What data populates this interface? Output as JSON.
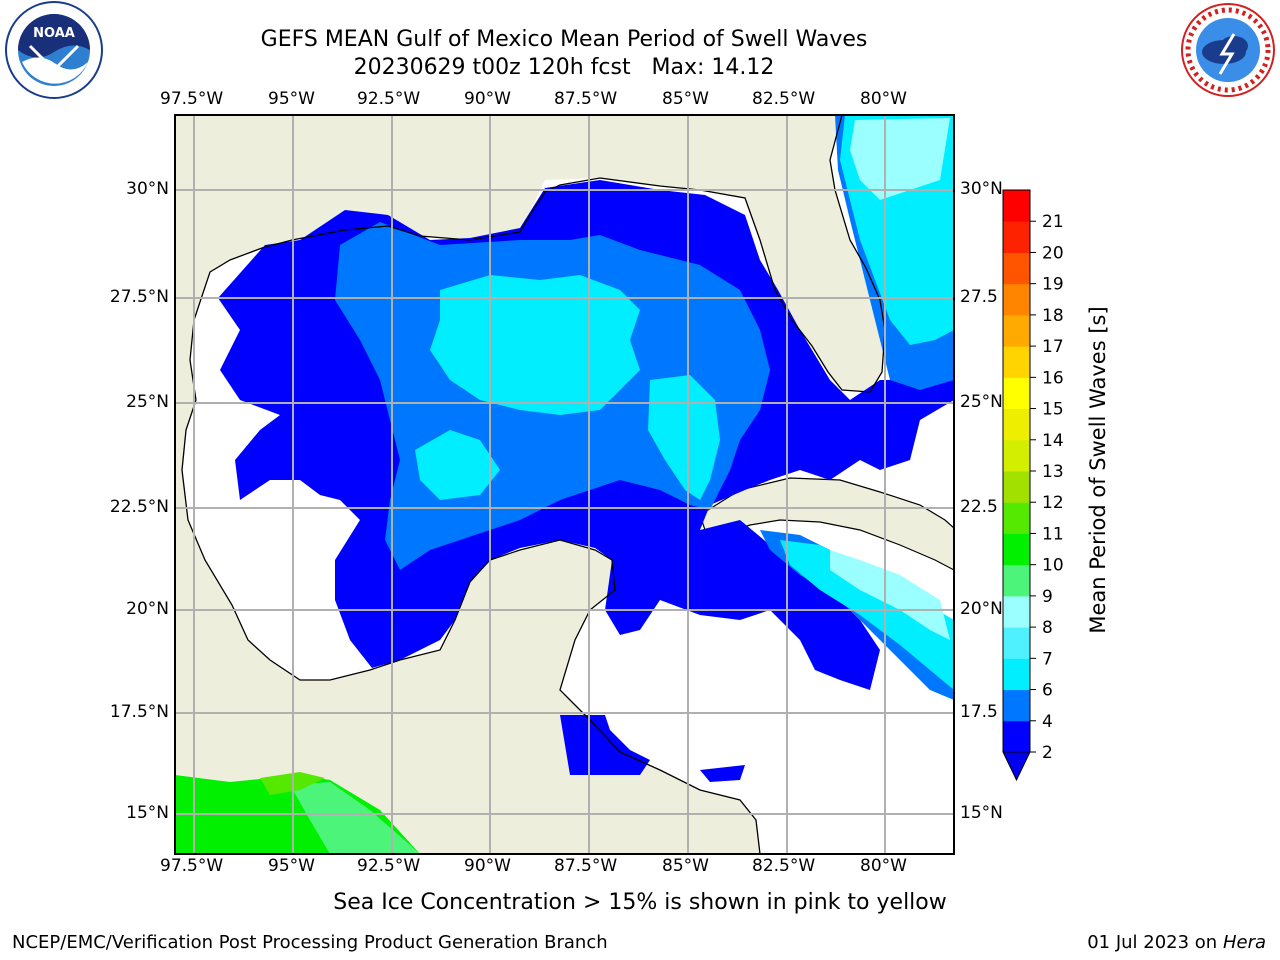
{
  "title": {
    "line1": "GEFS MEAN Gulf of Mexico Mean Period of Swell Waves",
    "line2": "20230629 t00z 120h fcst   Max: 14.12"
  },
  "logos": {
    "noaa": {
      "icon": "noaa-logo",
      "text": "NOAA",
      "ring_text": "NATIONAL OCEANIC AND ATMOSPHERIC ADMINISTRATION · U.S. DEPARTMENT OF COMMERCE"
    },
    "nws": {
      "icon": "nws-logo",
      "ring_text": "NATIONAL WEATHER SERVICE"
    }
  },
  "map": {
    "lon_labels": [
      "97.5°W",
      "95°W",
      "92.5°W",
      "90°W",
      "87.5°W",
      "85°W",
      "82.5°W",
      "80°W"
    ],
    "lat_labels_left": [
      "30°N",
      "27.5°N",
      "25°N",
      "22.5°N",
      "20°N",
      "17.5°N",
      "15°N"
    ],
    "lat_labels_right": [
      "30°N",
      "27.5",
      "25°N",
      "22.5",
      "20°N",
      "17.5",
      "15°N"
    ],
    "extent": {
      "lon_min": -98,
      "lon_max": -78.7,
      "lat_min": 14,
      "lat_max": 31.8
    },
    "colors": {
      "land": "#eeeedc",
      "ocean_nodata": "#ffffff",
      "grid": "#b0b0b0"
    }
  },
  "colorbar": {
    "label": "Mean Period of Swell Waves [s]",
    "ticks": [
      "2",
      "4",
      "6",
      "7",
      "8",
      "9",
      "10",
      "11",
      "12",
      "13",
      "14",
      "15",
      "16",
      "17",
      "18",
      "19",
      "20",
      "21"
    ],
    "colors": [
      "#0000ff",
      "#0077ff",
      "#00eeff",
      "#4ff0ff",
      "#9cffff",
      "#4cf57a",
      "#00f000",
      "#55e800",
      "#a2e000",
      "#d4ee00",
      "#eeee00",
      "#ffff00",
      "#ffd400",
      "#ffaa00",
      "#ff8400",
      "#ff5500",
      "#ff2200",
      "#ff0000"
    ],
    "under_color": "#0000ee"
  },
  "note": "Sea Ice Concentration > 15% is shown in pink to yellow",
  "footer": {
    "left": "NCEP/EMC/Verification Post Processing Product Generation Branch",
    "date": "01 Jul 2023 on ",
    "machine": "Hera"
  }
}
